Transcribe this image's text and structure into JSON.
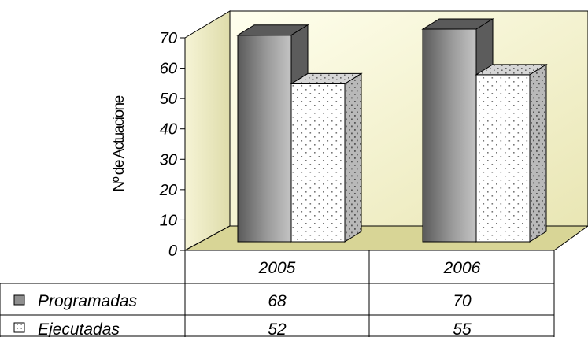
{
  "chart_data": {
    "type": "bar",
    "categories": [
      "2005",
      "2006"
    ],
    "series": [
      {
        "name": "Programadas",
        "values": [
          68,
          70
        ]
      },
      {
        "name": "Ejecutadas",
        "values": [
          52,
          55
        ]
      }
    ],
    "title": "",
    "xlabel": "",
    "ylabel": "Nº de Actuacione",
    "ylim": [
      0,
      70
    ],
    "yticks": [
      0,
      10,
      20,
      30,
      40,
      50,
      60,
      70
    ],
    "grid": false,
    "legend": "data-table-left",
    "style": "3d-clustered-column"
  },
  "colors": {
    "wall": "#f3f1c8",
    "floor": "#d9d79a",
    "programadas_front": "#9c9c9c",
    "programadas_top": "#5a5a5a",
    "programadas_side": "#5e5e5e",
    "ejecutadas_front": "#ffffff",
    "ejecutadas_side": "#a0a0a0",
    "dots": "#7a7a7a"
  }
}
